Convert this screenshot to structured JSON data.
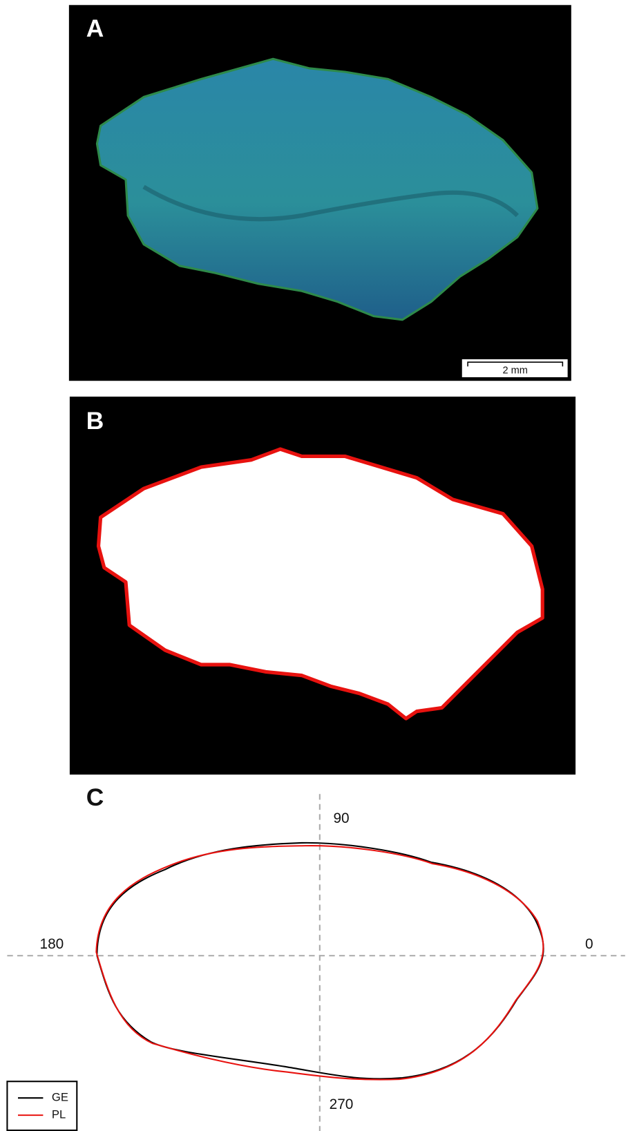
{
  "panels": [
    {
      "label": "A",
      "scale_bar": "2 mm"
    },
    {
      "label": "B"
    },
    {
      "label": "C",
      "angle_labels": {
        "right": "0",
        "top": "90",
        "left": "180",
        "bottom": "270"
      },
      "legend": [
        "GE",
        "PL"
      ]
    }
  ]
}
